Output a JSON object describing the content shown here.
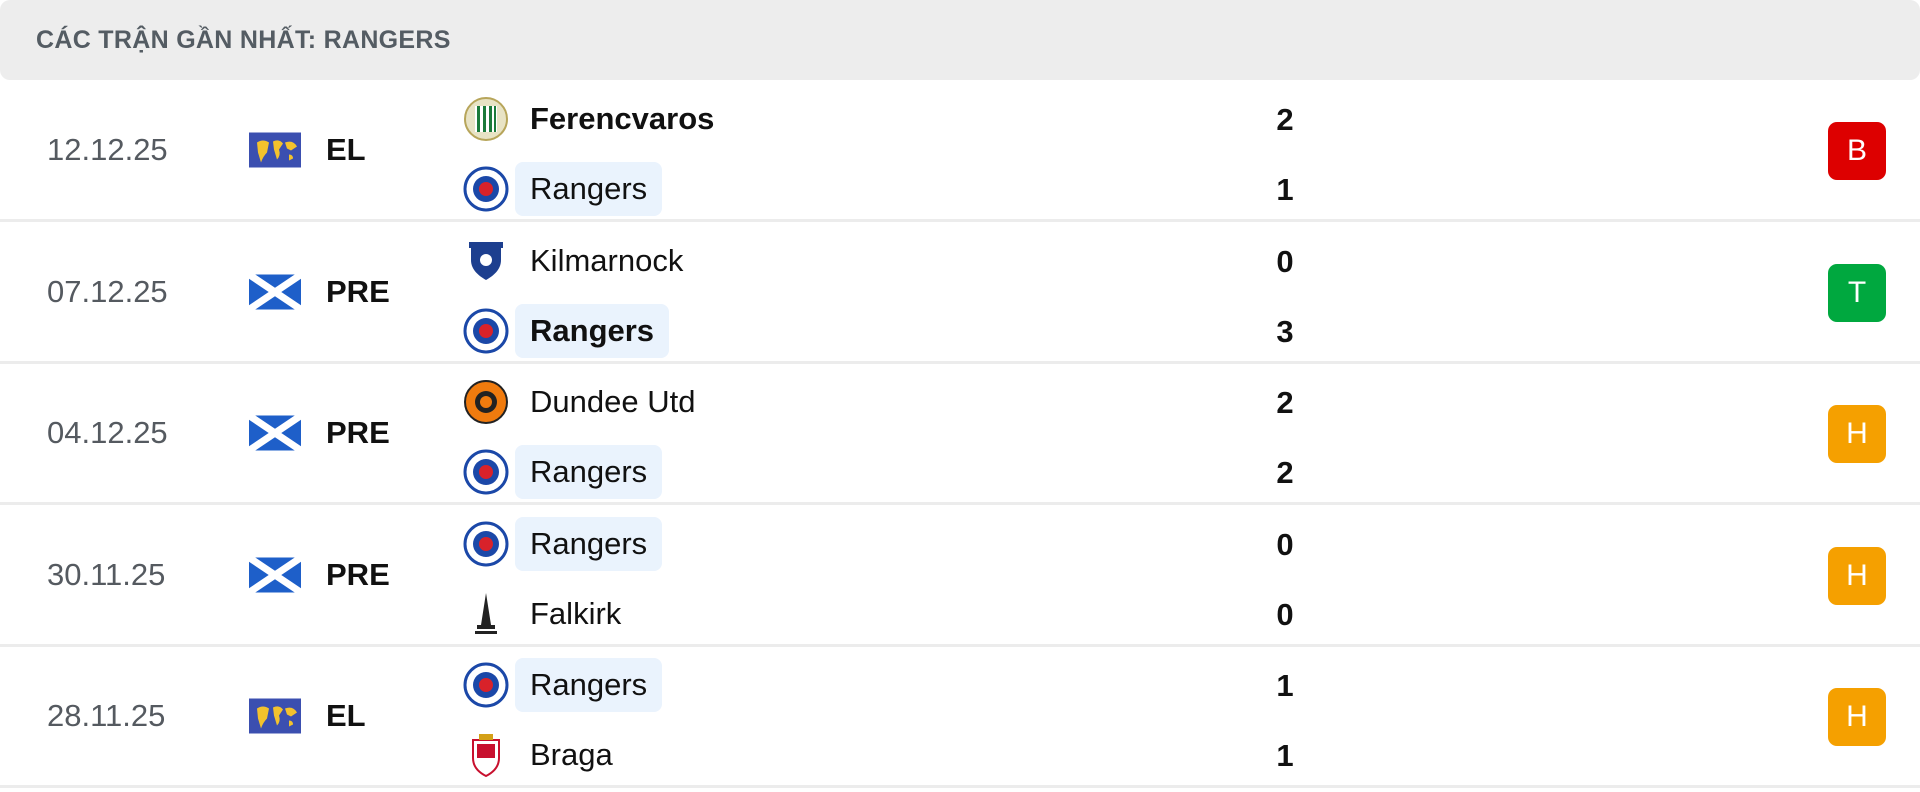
{
  "header": {
    "title": "CÁC TRẬN GẦN NHẤT: RANGERS"
  },
  "colors": {
    "loss": "#dd0000",
    "win": "#00a83f",
    "draw": "#f5a000",
    "highlight": "#eaf3fd"
  },
  "matches": [
    {
      "date": "12.12.25",
      "league": "EL",
      "flag": "europe-flag",
      "home": {
        "name": "Ferencvaros",
        "score": "2",
        "logo": "ferencvaros-logo",
        "bold": true,
        "highlight": false
      },
      "away": {
        "name": "Rangers",
        "score": "1",
        "logo": "rangers-logo",
        "bold": false,
        "highlight": true
      },
      "result": "B",
      "result_type": "loss"
    },
    {
      "date": "07.12.25",
      "league": "PRE",
      "flag": "scotland-flag",
      "home": {
        "name": "Kilmarnock",
        "score": "0",
        "logo": "kilmarnock-logo",
        "bold": false,
        "highlight": false
      },
      "away": {
        "name": "Rangers",
        "score": "3",
        "logo": "rangers-logo",
        "bold": true,
        "highlight": true
      },
      "result": "T",
      "result_type": "win"
    },
    {
      "date": "04.12.25",
      "league": "PRE",
      "flag": "scotland-flag",
      "home": {
        "name": "Dundee Utd",
        "score": "2",
        "logo": "dundee-utd-logo",
        "bold": false,
        "highlight": false
      },
      "away": {
        "name": "Rangers",
        "score": "2",
        "logo": "rangers-logo",
        "bold": false,
        "highlight": true
      },
      "result": "H",
      "result_type": "draw"
    },
    {
      "date": "30.11.25",
      "league": "PRE",
      "flag": "scotland-flag",
      "home": {
        "name": "Rangers",
        "score": "0",
        "logo": "rangers-logo",
        "bold": false,
        "highlight": true
      },
      "away": {
        "name": "Falkirk",
        "score": "0",
        "logo": "falkirk-logo",
        "bold": false,
        "highlight": false
      },
      "result": "H",
      "result_type": "draw"
    },
    {
      "date": "28.11.25",
      "league": "EL",
      "flag": "europe-flag",
      "home": {
        "name": "Rangers",
        "score": "1",
        "logo": "rangers-logo",
        "bold": false,
        "highlight": true
      },
      "away": {
        "name": "Braga",
        "score": "1",
        "logo": "braga-logo",
        "bold": false,
        "highlight": false
      },
      "result": "H",
      "result_type": "draw"
    }
  ]
}
